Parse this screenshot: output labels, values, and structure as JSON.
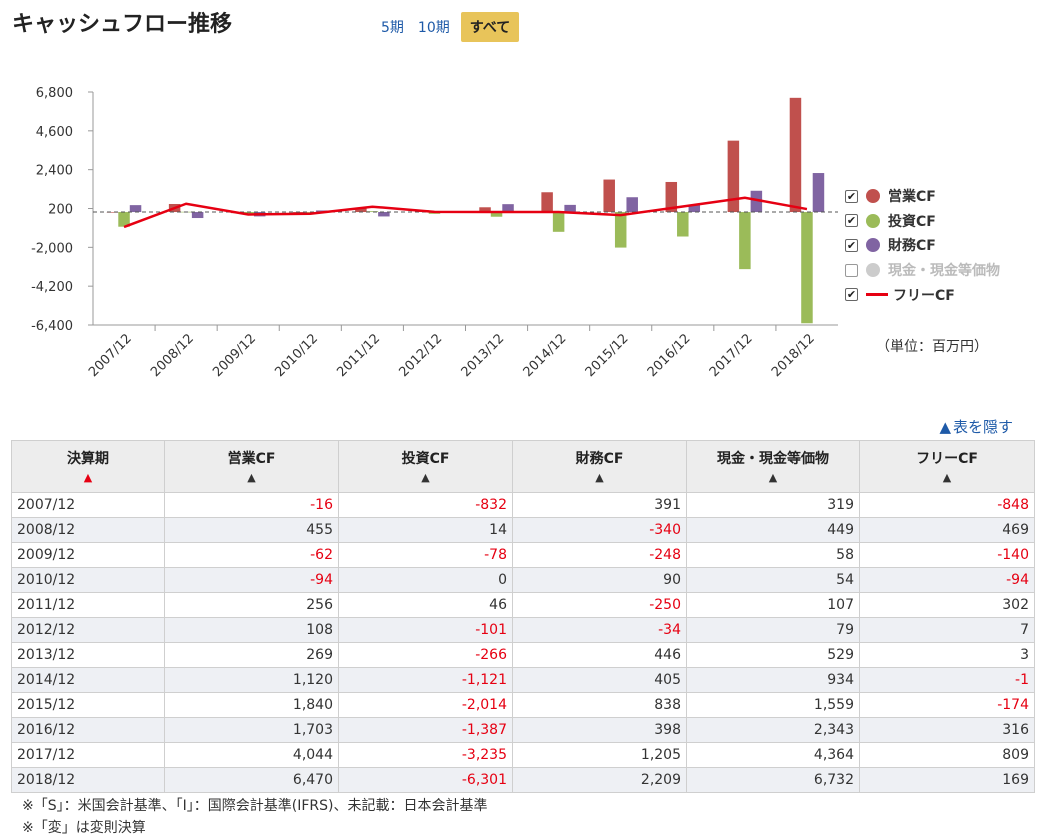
{
  "title": "キャッシュフロー推移",
  "period_switch": {
    "five": "5期",
    "ten": "10期",
    "all": "すべて"
  },
  "legend": [
    {
      "label": "営業CF",
      "color": "#c0504d",
      "checked": true
    },
    {
      "label": "投資CF",
      "color": "#9bbb59",
      "checked": true
    },
    {
      "label": "財務CF",
      "color": "#8064a2",
      "checked": true
    },
    {
      "label": "現金・現金等価物",
      "color": "#cccccc",
      "checked": false
    },
    {
      "label": "フリーCF",
      "color": "#e60012",
      "checked": true
    }
  ],
  "unit": "（単位：百万円）",
  "hide_table": "表を隠す",
  "chart_data": {
    "type": "bar",
    "categories": [
      "2007/12",
      "2008/12",
      "2009/12",
      "2010/12",
      "2011/12",
      "2012/12",
      "2013/12",
      "2014/12",
      "2015/12",
      "2016/12",
      "2017/12",
      "2018/12"
    ],
    "series": [
      {
        "name": "営業CF",
        "type": "bar",
        "color": "#c0504d",
        "values": [
          -16,
          455,
          -62,
          -94,
          256,
          108,
          269,
          1120,
          1840,
          1703,
          4044,
          6470
        ]
      },
      {
        "name": "投資CF",
        "type": "bar",
        "color": "#9bbb59",
        "values": [
          -832,
          14,
          -78,
          0,
          46,
          -101,
          -266,
          -1121,
          -2014,
          -1387,
          -3235,
          -6301
        ]
      },
      {
        "name": "財務CF",
        "type": "bar",
        "color": "#8064a2",
        "values": [
          391,
          -340,
          -248,
          90,
          -250,
          -34,
          446,
          405,
          838,
          398,
          1205,
          2209
        ]
      },
      {
        "name": "フリーCF",
        "type": "line",
        "color": "#e60012",
        "values": [
          -848,
          469,
          -140,
          -94,
          302,
          7,
          3,
          -1,
          -174,
          316,
          809,
          169
        ]
      }
    ],
    "yticks": [
      6800,
      4600,
      2400,
      200,
      -2000,
      -4200,
      -6400
    ],
    "ytick_labels": [
      "6,800",
      "4,600",
      "2,400",
      "200",
      "-2,000",
      "-4,200",
      "-6,400"
    ],
    "ylim": [
      -6400,
      6800
    ],
    "zero_line": "dashed",
    "legend_position": "right"
  },
  "table": {
    "headers": [
      "決算期",
      "営業CF",
      "投資CF",
      "財務CF",
      "現金・現金等価物",
      "フリーCF"
    ],
    "sort_marker": "▲",
    "rows": [
      [
        "2007/12",
        "-16",
        "-832",
        "391",
        "319",
        "-848"
      ],
      [
        "2008/12",
        "455",
        "14",
        "-340",
        "449",
        "469"
      ],
      [
        "2009/12",
        "-62",
        "-78",
        "-248",
        "58",
        "-140"
      ],
      [
        "2010/12",
        "-94",
        "0",
        "90",
        "54",
        "-94"
      ],
      [
        "2011/12",
        "256",
        "46",
        "-250",
        "107",
        "302"
      ],
      [
        "2012/12",
        "108",
        "-101",
        "-34",
        "79",
        "7"
      ],
      [
        "2013/12",
        "269",
        "-266",
        "446",
        "529",
        "3"
      ],
      [
        "2014/12",
        "1,120",
        "-1,121",
        "405",
        "934",
        "-1"
      ],
      [
        "2015/12",
        "1,840",
        "-2,014",
        "838",
        "1,559",
        "-174"
      ],
      [
        "2016/12",
        "1,703",
        "-1,387",
        "398",
        "2,343",
        "316"
      ],
      [
        "2017/12",
        "4,044",
        "-3,235",
        "1,205",
        "4,364",
        "809"
      ],
      [
        "2018/12",
        "6,470",
        "-6,301",
        "2,209",
        "6,732",
        "169"
      ]
    ]
  },
  "footnotes": [
    "※「S」：米国会計基準、「I」：国際会計基準(IFRS)、未記載：日本会計基準",
    "※「変」は変則決算"
  ]
}
